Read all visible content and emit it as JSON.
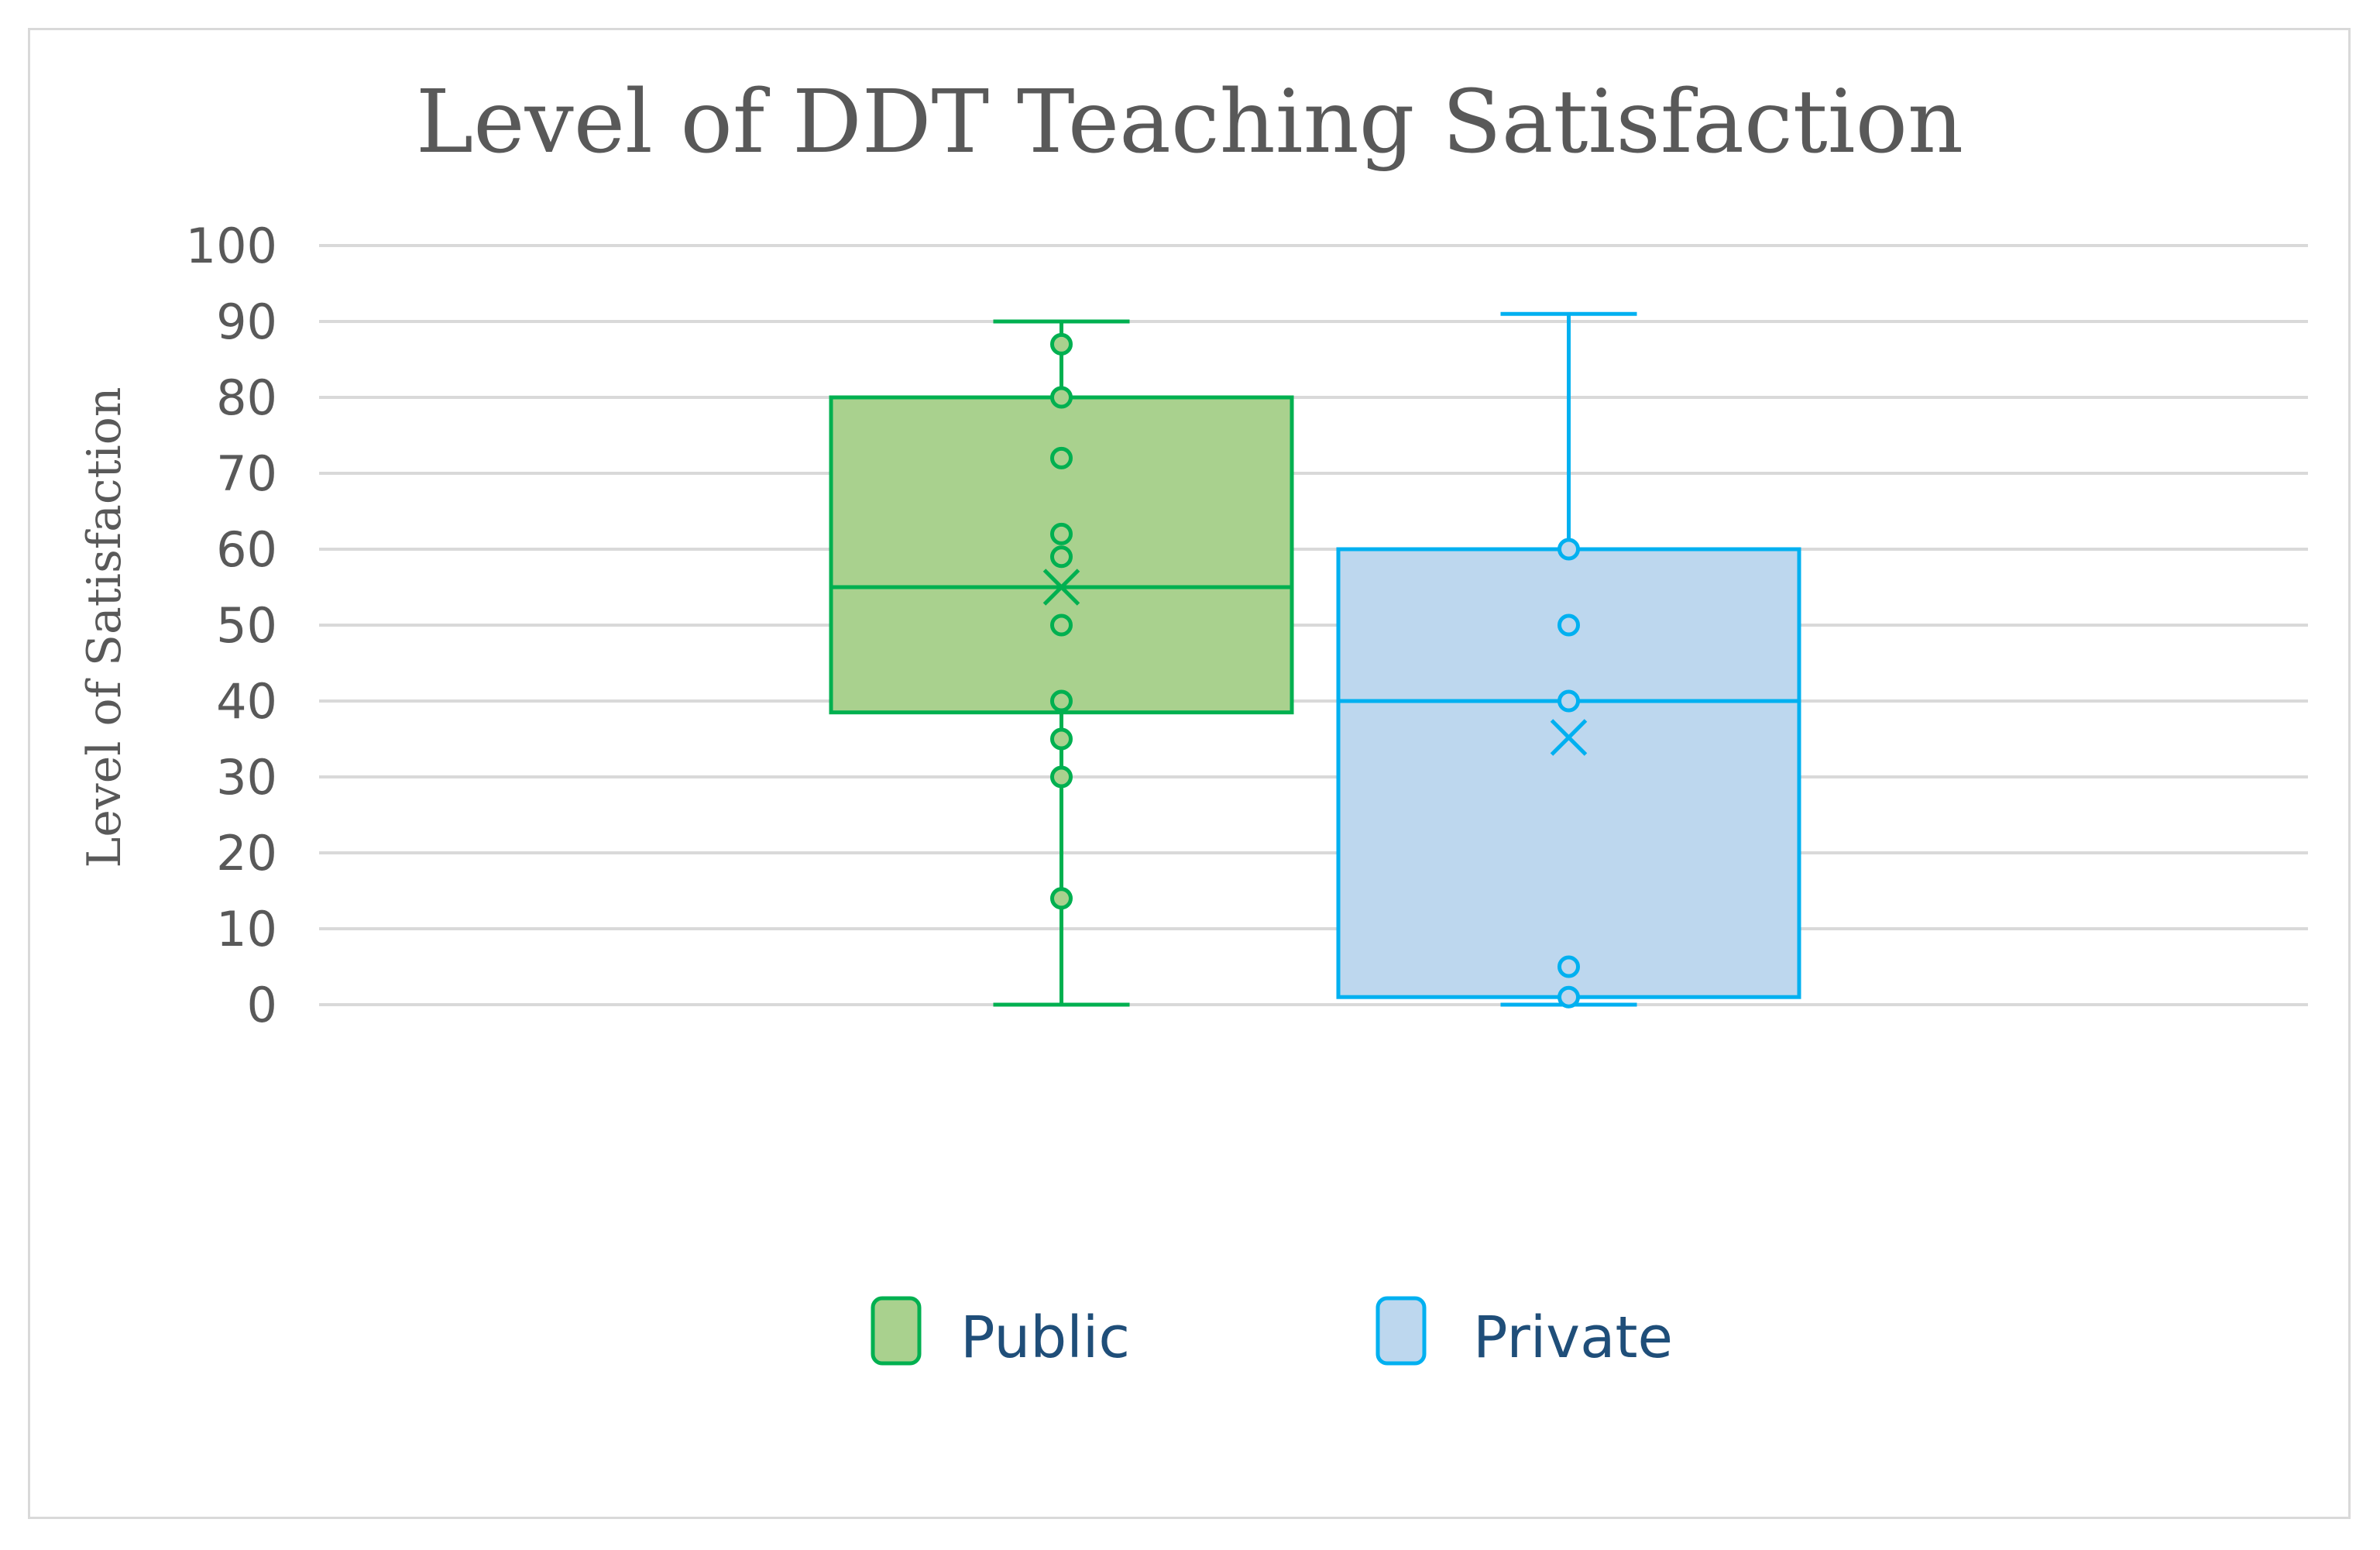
{
  "chart_data": {
    "type": "box",
    "title": "Level of DDT Teaching Satisfaction",
    "xlabel": "",
    "ylabel": "Level of Satisfaction",
    "ylim": [
      0,
      100
    ],
    "yticks": [
      0,
      10,
      20,
      30,
      40,
      50,
      60,
      70,
      80,
      90,
      100
    ],
    "grid": true,
    "legend_position": "bottom",
    "series": [
      {
        "name": "Public",
        "color": "#00b050",
        "fill": "#a9d18e",
        "whisker_low": 0,
        "q1": 38.5,
        "median": 55,
        "q3": 80,
        "whisker_high": 90,
        "mean": 55,
        "points": [
          87,
          80,
          72,
          62,
          59,
          50,
          40,
          35,
          30,
          14
        ]
      },
      {
        "name": "Private",
        "color": "#00b0f0",
        "fill": "#bdd7ee",
        "whisker_low": 0,
        "q1": 1,
        "median": 40,
        "q3": 60,
        "whisker_high": 91,
        "mean": 35.2,
        "points": [
          60,
          50,
          40,
          5,
          1
        ]
      }
    ]
  }
}
